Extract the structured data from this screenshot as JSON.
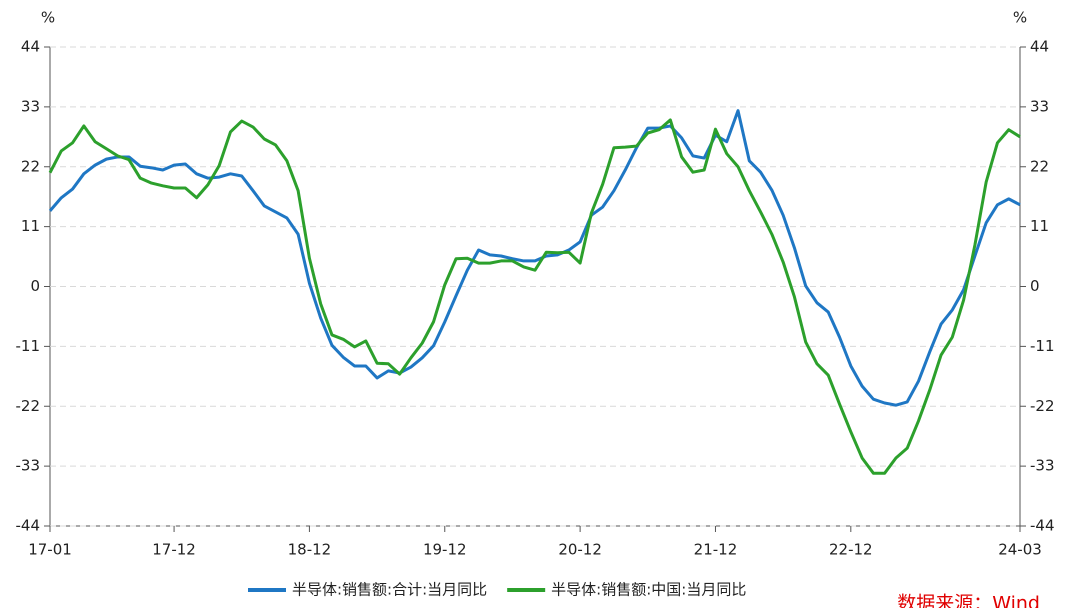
{
  "chart_data": {
    "type": "line",
    "y_label": "%",
    "y2_label": "%",
    "categories": [
      "17-01",
      null,
      null,
      null,
      null,
      null,
      null,
      null,
      null,
      null,
      null,
      "17-12",
      null,
      null,
      null,
      null,
      null,
      null,
      null,
      null,
      null,
      null,
      null,
      "18-12",
      null,
      null,
      null,
      null,
      null,
      null,
      null,
      null,
      null,
      null,
      null,
      "19-12",
      null,
      null,
      null,
      null,
      null,
      null,
      null,
      null,
      null,
      null,
      null,
      "20-12",
      null,
      null,
      null,
      null,
      null,
      null,
      null,
      null,
      null,
      null,
      null,
      "21-12",
      null,
      null,
      null,
      null,
      null,
      null,
      null,
      null,
      null,
      null,
      null,
      "22-12",
      null,
      null,
      null,
      null,
      null,
      null,
      null,
      null,
      null,
      null,
      null,
      null,
      null,
      null,
      "24-03"
    ],
    "series": [
      {
        "name": "半导体:销售额:合计:当月同比",
        "color": "#1f77c4",
        "values": [
          13.9,
          16.3,
          17.9,
          20.7,
          22.3,
          23.4,
          23.8,
          23.8,
          22.1,
          21.8,
          21.4,
          22.3,
          22.5,
          20.7,
          19.9,
          20.1,
          20.7,
          20.3,
          17.6,
          14.8,
          13.7,
          12.6,
          9.6,
          0.6,
          -5.8,
          -10.8,
          -13.0,
          -14.6,
          -14.6,
          -16.8,
          -15.5,
          -15.9,
          -14.8,
          -13.1,
          -10.9,
          -6.5,
          -1.7,
          3.0,
          6.7,
          5.8,
          5.6,
          5.1,
          4.7,
          4.7,
          5.6,
          5.8,
          6.7,
          8.2,
          13.1,
          14.6,
          17.6,
          21.4,
          25.5,
          29.1,
          29.1,
          29.5,
          27.3,
          24.0,
          23.6,
          27.8,
          26.6,
          32.3,
          23.1,
          21.0,
          17.7,
          13.1,
          7.1,
          0.1,
          -3.0,
          -4.7,
          -9.3,
          -14.6,
          -18.3,
          -20.7,
          -21.4,
          -21.8,
          -21.2,
          -17.4,
          -12.0,
          -6.9,
          -4.3,
          -0.6,
          5.6,
          11.7,
          15.0,
          16.1,
          15.0
        ]
      },
      {
        "name": "半导体:销售额:中国:当月同比",
        "color": "#2ca02c",
        "values": [
          20.9,
          24.9,
          26.4,
          29.5,
          26.6,
          25.3,
          24.0,
          23.3,
          19.9,
          19.0,
          18.5,
          18.1,
          18.1,
          16.3,
          18.7,
          22.2,
          28.4,
          30.4,
          29.3,
          27.1,
          26.0,
          23.1,
          17.6,
          5.2,
          -3.2,
          -8.9,
          -9.7,
          -11.1,
          -10.0,
          -14.1,
          -14.2,
          -16.1,
          -13.1,
          -10.4,
          -6.5,
          0.3,
          5.1,
          5.2,
          4.3,
          4.3,
          4.7,
          4.7,
          3.6,
          3.0,
          6.3,
          6.2,
          6.3,
          4.3,
          13.5,
          18.8,
          25.5,
          25.6,
          25.8,
          28.2,
          28.8,
          30.6,
          23.8,
          21.0,
          21.4,
          28.9,
          24.4,
          22.0,
          17.6,
          13.7,
          9.6,
          4.5,
          -1.9,
          -10.2,
          -14.2,
          -16.3,
          -21.6,
          -26.7,
          -31.5,
          -34.3,
          -34.3,
          -31.5,
          -29.7,
          -24.7,
          -19.0,
          -12.6,
          -9.3,
          -2.5,
          7.6,
          19.2,
          26.4,
          28.8,
          27.5
        ]
      }
    ],
    "ylim": [
      -44,
      44
    ],
    "yticks": [
      44,
      33,
      22,
      11,
      0,
      -11,
      -22,
      -33,
      -44
    ],
    "y2lim": [
      -44,
      44
    ],
    "y2ticks": [
      44,
      33,
      22,
      11,
      0,
      -11,
      -22,
      -33,
      -44
    ],
    "grid": true,
    "legend": "bottom",
    "source": "数据来源：Wind"
  }
}
